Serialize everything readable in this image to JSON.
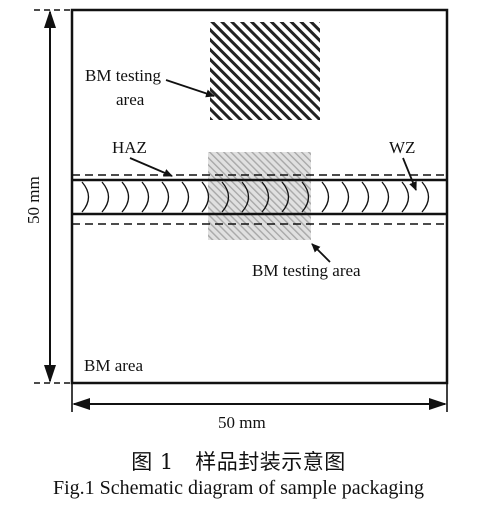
{
  "labels": {
    "bm_testing_top_line1": "BM testing",
    "bm_testing_top_line2": "area",
    "haz": "HAZ",
    "wz": "WZ",
    "bm_testing_bottom": "BM testing area",
    "bm_area": "BM area",
    "height_dim": "50 mm",
    "width_dim": "50 mm"
  },
  "caption": {
    "chinese": "图 1　样品封装示意图",
    "english": "Fig.1 Schematic diagram of sample packaging"
  },
  "colors": {
    "line": "#111111",
    "hatch": "#222222",
    "shaded_area": "#c8c8c8",
    "background": "#ffffff"
  }
}
